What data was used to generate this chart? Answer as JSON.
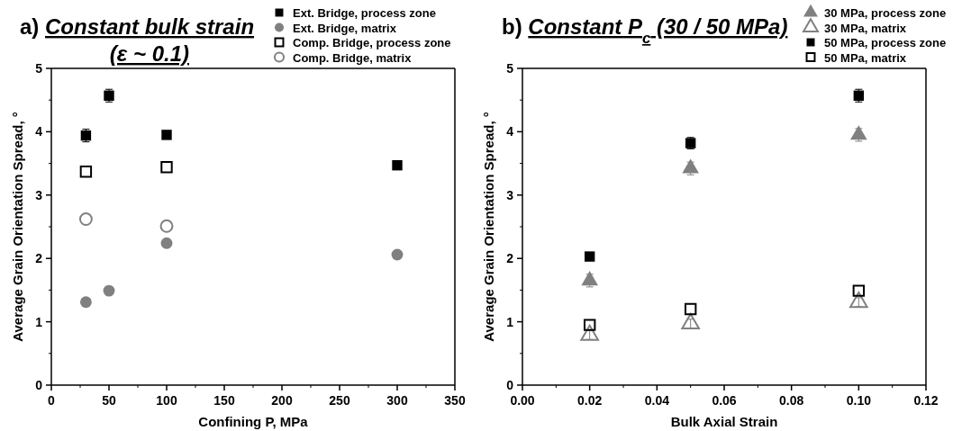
{
  "chart_data": [
    {
      "type": "scatter",
      "title": "a) Constant bulk strain (ε ~ 0.1)",
      "xlabel": "Confining P, MPa",
      "ylabel": "Average Grain Orientation Spread, °",
      "xlim": [
        0,
        350
      ],
      "xticks": [
        0,
        50,
        100,
        150,
        200,
        250,
        300,
        350
      ],
      "ylim": [
        0,
        5
      ],
      "yticks": [
        0,
        1,
        2,
        3,
        4,
        5
      ],
      "grid": false,
      "legend": "top right",
      "series": [
        {
          "name": "Ext. Bridge, process zone",
          "color": "#000000",
          "marker": "square",
          "x": [
            30,
            50,
            100,
            300
          ],
          "values": [
            3.94,
            4.57,
            3.95,
            3.47
          ],
          "errors": [
            0.1,
            0.1,
            0.04,
            0.04
          ]
        },
        {
          "name": "Ext. Bridge, matrix",
          "color": "#808080",
          "marker": "circle",
          "x": [
            30,
            50,
            100,
            300
          ],
          "values": [
            1.31,
            1.49,
            2.24,
            2.06
          ]
        },
        {
          "name": "Comp. Bridge, process zone",
          "color": "#000000",
          "marker": "square-open",
          "x": [
            30,
            100
          ],
          "values": [
            3.37,
            3.44
          ]
        },
        {
          "name": "Comp. Bridge, matrix",
          "color": "#808080",
          "marker": "circle-open",
          "x": [
            30,
            100
          ],
          "values": [
            2.62,
            2.51
          ]
        }
      ]
    },
    {
      "type": "scatter",
      "title": "b) Constant P$_{c}$ (30 / 50 MPa)",
      "xlabel": "Bulk Axial Strain",
      "ylabel": "Average Grain Orientation Spread, °",
      "xlim": [
        0,
        0.12
      ],
      "xticks": [
        {
          "value": 0,
          "label": "0.00"
        },
        {
          "value": 0.02,
          "label": "0.02"
        },
        {
          "value": 0.04,
          "label": "0.04"
        },
        {
          "value": 0.06,
          "label": "0.06"
        },
        {
          "value": 0.08,
          "label": "0.08"
        },
        {
          "value": 0.1,
          "label": "0.10"
        },
        {
          "value": 0.12,
          "label": "0.12"
        }
      ],
      "ylim": [
        0,
        5
      ],
      "yticks": [
        0,
        1,
        2,
        3,
        4,
        5
      ],
      "grid": false,
      "legend": "top right",
      "series": [
        {
          "name": "30 MPa, process zone",
          "color": "#808080",
          "marker": "triangle",
          "x": [
            0.02,
            0.05,
            0.1
          ],
          "values": [
            1.65,
            3.42,
            3.95
          ],
          "errors": [
            0.1,
            0.1,
            0.1
          ]
        },
        {
          "name": "30 MPa, matrix",
          "color": "#808080",
          "marker": "triangle-open",
          "x": [
            0.02,
            0.05,
            0.1
          ],
          "values": [
            0.79,
            0.97,
            1.31
          ],
          "errors": [
            0.07,
            0.07,
            0.07
          ]
        },
        {
          "name": "50 MPa, process zone",
          "color": "#000000",
          "marker": "square",
          "x": [
            0.02,
            0.05,
            0.1
          ],
          "values": [
            2.03,
            3.82,
            4.57
          ],
          "errors": [
            0.03,
            0.09,
            0.1
          ]
        },
        {
          "name": "50 MPa, matrix",
          "color": "#000000",
          "marker": "square-open",
          "x": [
            0.02,
            0.05,
            0.1
          ],
          "values": [
            0.95,
            1.2,
            1.49
          ]
        }
      ]
    }
  ]
}
